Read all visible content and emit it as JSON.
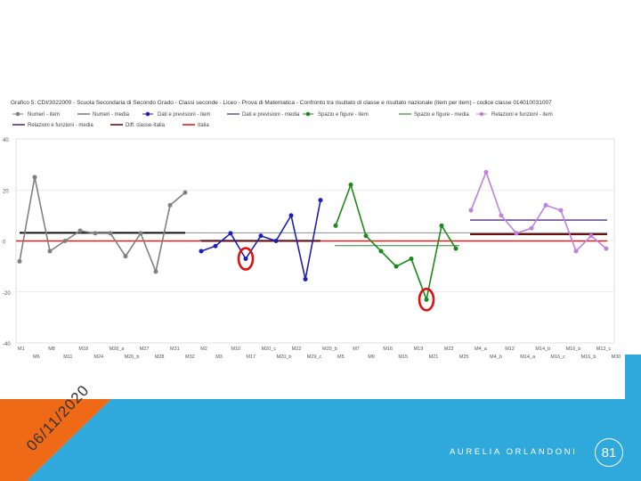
{
  "chart_data": {
    "type": "line",
    "title": "Grafico 5: CDI/3022000 - Scuola Secondaria di Secondo Grado - Classi seconde - Liceo - Prova di Matematica - Confronto tra risultato di classe e risultato nazionale (item per item) - codice classe 014010031007",
    "legend": [
      {
        "label": "Numeri - item",
        "color": "#808080",
        "kind": "point"
      },
      {
        "label": "Numeri - media",
        "color": "#808080",
        "kind": "line"
      },
      {
        "label": "Dati e previsioni - item",
        "color": "#1f1fb8",
        "kind": "point"
      },
      {
        "label": "Dati e previsioni - media",
        "color": "#6b5bb5",
        "kind": "line"
      },
      {
        "label": "Spazio e figure - item",
        "color": "#1a8a1a",
        "kind": "point"
      },
      {
        "label": "Spazio e figure - media",
        "color": "#6aa86a",
        "kind": "line"
      },
      {
        "label": "Relazioni e funzioni - item",
        "color": "#c080e0",
        "kind": "point"
      },
      {
        "label": "Relazioni e funzioni - media",
        "color": "#5a2f7a",
        "kind": "line"
      },
      {
        "label": "Diff. classe-Italia",
        "color": "#6b1010",
        "kind": "line"
      },
      {
        "label": "Italia",
        "color": "#e02020",
        "kind": "line"
      }
    ],
    "y_ticks": [
      "-40",
      "-20",
      "0",
      "20",
      "40"
    ],
    "ylim": [
      -40,
      40
    ],
    "x_ticks_top": [
      "M1",
      "M8",
      "M18",
      "M28_a",
      "M27",
      "M31",
      "M2",
      "M10",
      "M20_c",
      "M22",
      "M29_b",
      "M7",
      "M16",
      "M19",
      "M23",
      "M4_a",
      "M12",
      "M14_b",
      "M16_b",
      "M13_c"
    ],
    "x_ticks_bottom": [
      "M6",
      "M11",
      "M24",
      "M26_b",
      "M28",
      "M32",
      "M3",
      "M17",
      "M20_b",
      "M29_c",
      "M5",
      "M9",
      "M15",
      "M21",
      "M25",
      "M4_b",
      "M14_a",
      "M16_c",
      "M16_b",
      "M30"
    ],
    "series": [
      {
        "name": "Numeri - item",
        "color": "#808080",
        "values": [
          -8,
          25,
          -4,
          0,
          4,
          3,
          3,
          -6,
          3,
          -12,
          14,
          19
        ]
      },
      {
        "name": "Dati e previsioni - item",
        "color": "#1f1fb8",
        "values": [
          -4,
          -2,
          3,
          -7,
          2,
          0,
          10,
          -15,
          16
        ]
      },
      {
        "name": "Spazio e figure - item",
        "color": "#1a8a1a",
        "values": [
          6,
          22,
          2,
          -4,
          -10,
          -7,
          -23,
          6,
          -3
        ]
      },
      {
        "name": "Relazioni e funzioni - item",
        "color": "#c080e0",
        "values": [
          12,
          27,
          10,
          3,
          5,
          14,
          12,
          -4,
          2,
          -3
        ]
      }
    ],
    "means": [
      {
        "name": "Numeri - media",
        "color": "#808080",
        "value": 3
      },
      {
        "name": "Dati e previsioni - media",
        "color": "#6b5bb5",
        "value": 0
      },
      {
        "name": "Spazio e figure - media",
        "color": "#6aa86a",
        "value": -2
      },
      {
        "name": "Relazioni e funzioni - media",
        "color": "#5a2f7a",
        "value": 8
      }
    ],
    "diff_lines": [
      {
        "name": "Diff. classe-Italia",
        "segment": "Numeri",
        "value": 3.2
      },
      {
        "name": "Diff. classe-Italia",
        "segment": "Dati e previsioni",
        "value": 0
      },
      {
        "name": "Diff. classe-Italia",
        "segment": "Relazioni e funzioni",
        "value": 2.6
      }
    ],
    "italia": {
      "name": "Italia",
      "value": 0
    },
    "highlighted": [
      {
        "series": "Dati e previsioni - item",
        "index": 3
      },
      {
        "series": "Spazio e figure - item",
        "index": 6
      }
    ],
    "grid": true,
    "legend_position": "top"
  },
  "footer": {
    "date": "06/11/2020",
    "author": "AURELIA ORLANDONI",
    "page_number": "81"
  },
  "colors": {
    "accent_orange": "#ef6a16",
    "accent_blue": "#2fa8dc",
    "highlight_red": "#e01010"
  }
}
